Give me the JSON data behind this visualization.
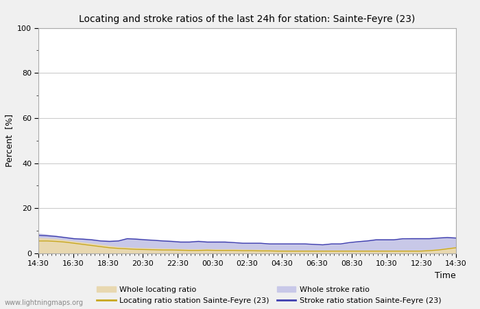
{
  "title": "Locating and stroke ratios of the last 24h for station: Sainte-Feyre (23)",
  "xlabel": "Time",
  "ylabel": "Percent  [%]",
  "xlim": [
    0,
    48
  ],
  "ylim": [
    0,
    100
  ],
  "yticks": [
    0,
    20,
    40,
    60,
    80,
    100
  ],
  "yticks_minor": [
    10,
    30,
    50,
    70,
    90
  ],
  "xtick_labels": [
    "14:30",
    "16:30",
    "18:30",
    "20:30",
    "22:30",
    "00:30",
    "02:30",
    "04:30",
    "06:30",
    "08:30",
    "10:30",
    "12:30",
    "14:30"
  ],
  "xtick_positions": [
    0,
    4,
    8,
    12,
    16,
    20,
    24,
    28,
    32,
    36,
    40,
    44,
    48
  ],
  "background_color": "#f0f0f0",
  "plot_background_color": "#ffffff",
  "grid_color": "#cccccc",
  "watermark": "www.lightningmaps.org",
  "whole_locating_color": "#e8d8b0",
  "whole_stroke_color": "#c8c8e8",
  "locating_line_color": "#c8a820",
  "stroke_line_color": "#4040b0",
  "whole_locating_ratio": [
    7.0,
    6.8,
    6.5,
    6.0,
    5.5,
    5.0,
    4.5,
    4.0,
    3.5,
    3.0,
    2.8,
    2.6,
    2.5,
    2.4,
    2.3,
    2.2,
    2.1,
    2.0,
    2.0,
    2.1,
    2.0,
    2.0,
    2.0,
    1.9,
    1.8,
    1.8,
    1.7,
    1.6,
    1.5,
    1.5,
    1.5,
    1.5,
    1.5,
    1.5,
    1.5,
    1.5,
    1.5,
    1.5,
    1.5,
    1.5,
    1.5,
    1.5,
    1.5,
    1.5,
    1.7,
    2.0,
    2.5,
    3.0
  ],
  "locating_station_ratio": [
    5.5,
    5.5,
    5.3,
    5.0,
    4.5,
    4.0,
    3.5,
    3.0,
    2.5,
    2.2,
    2.0,
    1.8,
    1.7,
    1.6,
    1.5,
    1.5,
    1.4,
    1.3,
    1.3,
    1.4,
    1.3,
    1.3,
    1.3,
    1.2,
    1.2,
    1.1,
    1.1,
    1.0,
    1.0,
    1.0,
    1.0,
    1.0,
    1.0,
    1.0,
    1.0,
    1.0,
    1.0,
    1.0,
    1.0,
    1.0,
    1.0,
    1.0,
    1.0,
    1.0,
    1.2,
    1.5,
    2.0,
    2.5
  ],
  "whole_stroke_ratio": [
    9.0,
    8.5,
    8.0,
    7.5,
    7.0,
    6.8,
    6.5,
    6.0,
    5.8,
    6.0,
    7.0,
    6.8,
    6.5,
    6.2,
    6.0,
    5.8,
    5.5,
    5.5,
    5.8,
    5.5,
    5.5,
    5.5,
    5.0,
    4.8,
    4.8,
    4.8,
    4.5,
    4.5,
    4.5,
    4.5,
    4.5,
    4.3,
    4.2,
    4.5,
    4.5,
    5.0,
    5.5,
    6.0,
    6.5,
    6.5,
    6.5,
    6.8,
    7.0,
    7.0,
    7.0,
    7.2,
    7.5,
    7.2
  ],
  "stroke_station_ratio": [
    8.0,
    7.8,
    7.5,
    7.0,
    6.5,
    6.3,
    6.0,
    5.5,
    5.3,
    5.5,
    6.5,
    6.3,
    6.0,
    5.8,
    5.5,
    5.3,
    5.0,
    5.0,
    5.3,
    5.0,
    5.0,
    5.0,
    4.8,
    4.5,
    4.5,
    4.5,
    4.2,
    4.2,
    4.2,
    4.2,
    4.2,
    4.0,
    3.8,
    4.2,
    4.2,
    4.8,
    5.2,
    5.5,
    6.0,
    6.0,
    6.0,
    6.5,
    6.5,
    6.5,
    6.5,
    6.8,
    7.0,
    6.8
  ]
}
